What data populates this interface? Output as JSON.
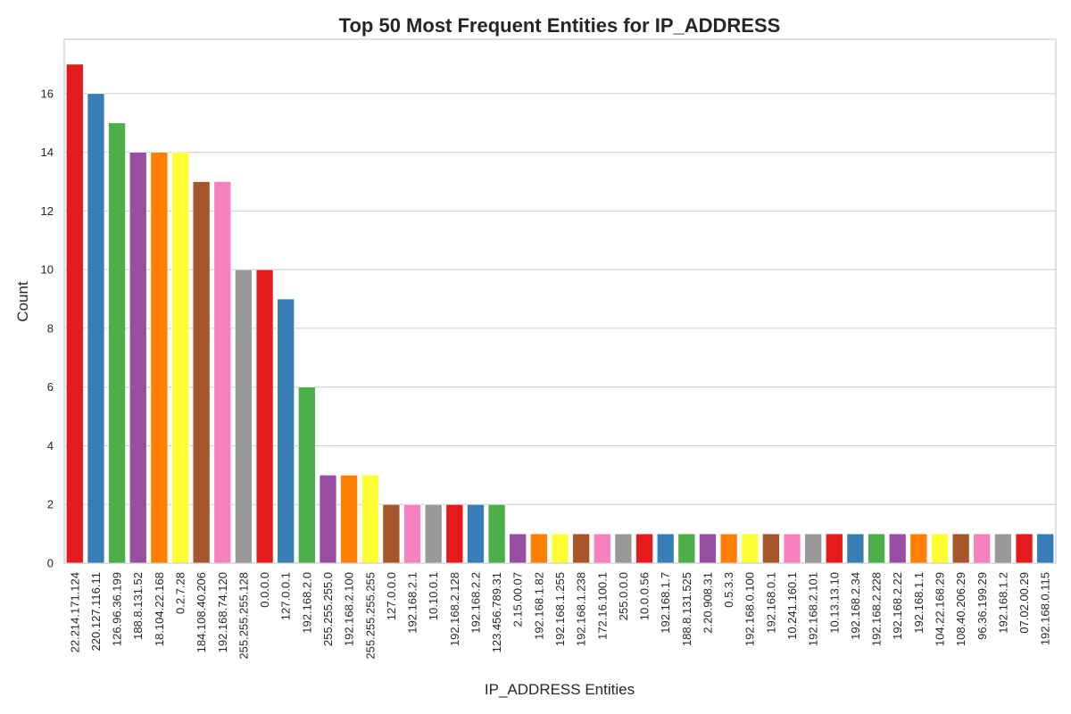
{
  "chart_data": {
    "type": "bar",
    "title": "Top 50 Most Frequent Entities for IP_ADDRESS",
    "xlabel": "IP_ADDRESS Entities",
    "ylabel": "Count",
    "ylim": [
      0,
      17.85
    ],
    "yticks": [
      0,
      2,
      4,
      6,
      8,
      10,
      12,
      14,
      16
    ],
    "grid": true,
    "palette": [
      "#e41a1c",
      "#377eb8",
      "#4daf4a",
      "#984ea3",
      "#ff7f00",
      "#ffff33",
      "#a65628",
      "#f781bf",
      "#999999"
    ],
    "categories": [
      "22.214.171.124",
      "220.127.116.11",
      "126.96.36.199",
      "188.8.131.52",
      "18.104.22.168",
      "0.2.7.28",
      "184.108.40.206",
      "192.168.74.120",
      "255.255.255.128",
      "0.0.0.0",
      "127.0.0.1",
      "192.168.2.0",
      "255.255.255.0",
      "192.168.2.100",
      "255.255.255.255",
      "127.0.0.0",
      "192.168.2.1",
      "10.10.0.1",
      "192.168.2.128",
      "192.168.2.2",
      "123.456.789.31",
      "2.15.00.07",
      "192.168.1.82",
      "192.168.1.255",
      "192.168.1.238",
      "172.16.100.1",
      "255.0.0.0",
      "10.0.0.56",
      "192.168.1.7",
      "188.8.131.525",
      "2.20.908.31",
      "0.5.3.3",
      "192.168.0.100",
      "192.168.0.1",
      "10.241.160.1",
      "192.168.2.101",
      "10.13.13.10",
      "192.168.2.34",
      "192.168.2.228",
      "192.168.2.22",
      "192.168.1.1",
      "104.22.168.29",
      "108.40.206.29",
      "96.36.199.29",
      "192.168.1.2",
      "07.02.00.29",
      "192.168.0.115"
    ],
    "values": [
      17,
      16,
      15,
      14,
      14,
      14,
      13,
      13,
      10,
      10,
      9,
      6,
      3,
      3,
      3,
      2,
      2,
      2,
      2,
      2,
      2,
      1,
      1,
      1,
      1,
      1,
      1,
      1,
      1,
      1,
      1,
      1,
      1,
      1,
      1,
      1,
      1,
      1,
      1,
      1,
      1,
      1,
      1,
      1,
      1,
      1,
      1
    ]
  }
}
